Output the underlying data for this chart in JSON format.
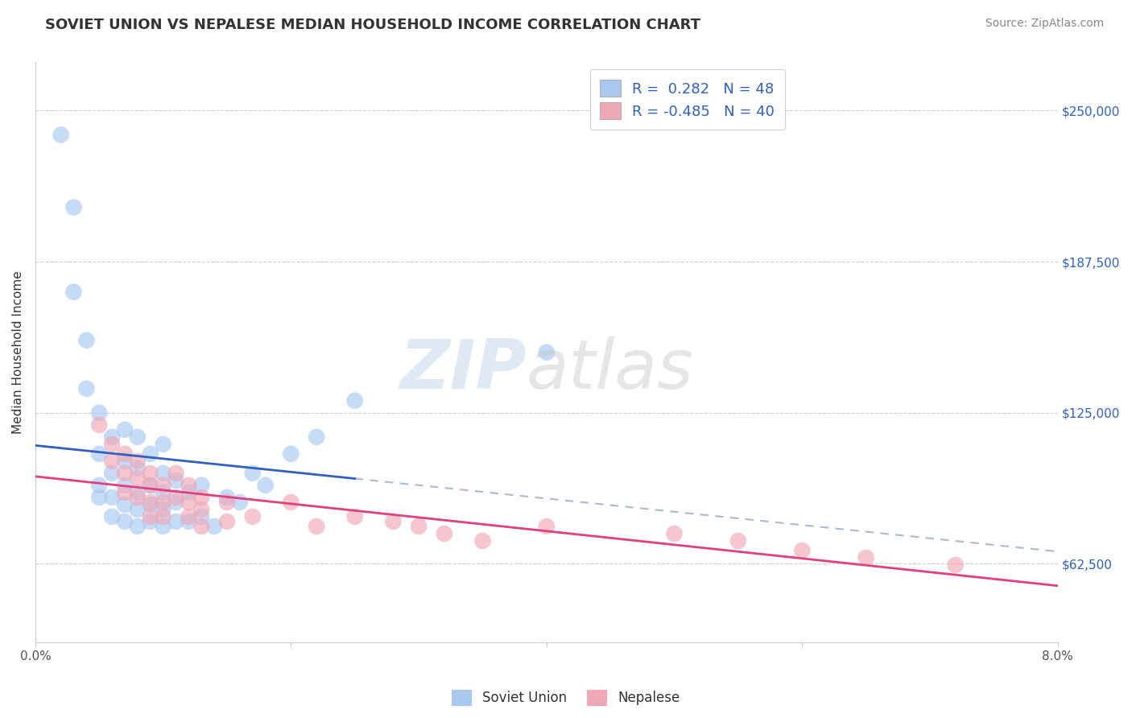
{
  "title": "SOVIET UNION VS NEPALESE MEDIAN HOUSEHOLD INCOME CORRELATION CHART",
  "source": "Source: ZipAtlas.com",
  "ylabel": "Median Household Income",
  "yticks": [
    62500,
    125000,
    187500,
    250000
  ],
  "ytick_labels": [
    "$62,500",
    "$125,000",
    "$187,500",
    "$250,000"
  ],
  "xmin": 0.0,
  "xmax": 0.08,
  "ymin": 30000,
  "ymax": 270000,
  "soviet_R": 0.282,
  "soviet_N": 48,
  "nepalese_R": -0.485,
  "nepalese_N": 40,
  "soviet_color": "#a8c8f0",
  "nepalese_color": "#f0a8b8",
  "soviet_line_color": "#3060c0",
  "nepalese_line_color": "#e04080",
  "background_color": "#ffffff",
  "grid_color": "#d0d0d0",
  "legend_text_color": "#3060c0",
  "soviet_scatter_x": [
    0.002,
    0.003,
    0.003,
    0.004,
    0.004,
    0.005,
    0.005,
    0.005,
    0.005,
    0.006,
    0.006,
    0.006,
    0.006,
    0.007,
    0.007,
    0.007,
    0.007,
    0.007,
    0.008,
    0.008,
    0.008,
    0.008,
    0.008,
    0.009,
    0.009,
    0.009,
    0.009,
    0.01,
    0.01,
    0.01,
    0.01,
    0.01,
    0.011,
    0.011,
    0.011,
    0.012,
    0.012,
    0.013,
    0.013,
    0.014,
    0.015,
    0.016,
    0.017,
    0.018,
    0.02,
    0.022,
    0.025,
    0.04
  ],
  "soviet_scatter_y": [
    240000,
    210000,
    175000,
    155000,
    135000,
    90000,
    95000,
    108000,
    125000,
    82000,
    90000,
    100000,
    115000,
    80000,
    87000,
    95000,
    105000,
    118000,
    78000,
    85000,
    92000,
    102000,
    115000,
    80000,
    87000,
    95000,
    108000,
    78000,
    85000,
    92000,
    100000,
    112000,
    80000,
    88000,
    97000,
    80000,
    92000,
    82000,
    95000,
    78000,
    90000,
    88000,
    100000,
    95000,
    108000,
    115000,
    130000,
    150000
  ],
  "nepalese_scatter_x": [
    0.005,
    0.006,
    0.006,
    0.007,
    0.007,
    0.007,
    0.008,
    0.008,
    0.008,
    0.009,
    0.009,
    0.009,
    0.009,
    0.01,
    0.01,
    0.01,
    0.011,
    0.011,
    0.012,
    0.012,
    0.012,
    0.013,
    0.013,
    0.013,
    0.015,
    0.015,
    0.017,
    0.02,
    0.022,
    0.025,
    0.028,
    0.03,
    0.032,
    0.035,
    0.04,
    0.05,
    0.055,
    0.06,
    0.065,
    0.072
  ],
  "nepalese_scatter_y": [
    120000,
    112000,
    105000,
    108000,
    100000,
    92000,
    105000,
    98000,
    90000,
    100000,
    95000,
    88000,
    82000,
    95000,
    88000,
    82000,
    100000,
    90000,
    88000,
    95000,
    82000,
    90000,
    85000,
    78000,
    88000,
    80000,
    82000,
    88000,
    78000,
    82000,
    80000,
    78000,
    75000,
    72000,
    78000,
    75000,
    72000,
    68000,
    65000,
    62000
  ],
  "dashed_line_color": "#b0b8d0"
}
